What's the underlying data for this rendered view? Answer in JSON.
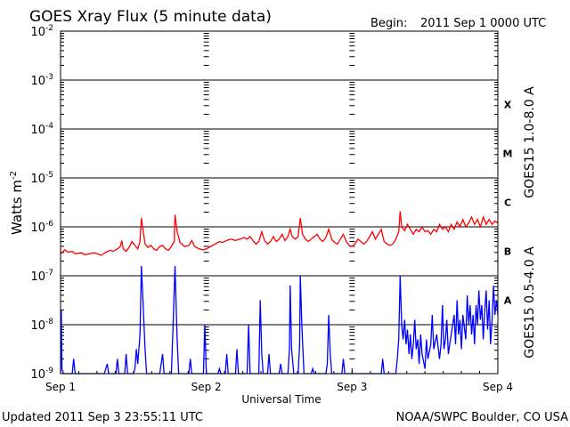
{
  "header": {
    "title": "GOES Xray Flux (5 minute data)",
    "begin_label": "Begin:",
    "begin_value": "2011 Sep 1 0000 UTC"
  },
  "footer": {
    "updated": "Updated 2011 Sep  3 23:55:11 UTC",
    "credit": "NOAA/SWPC Boulder, CO USA"
  },
  "chart_data": {
    "type": "line",
    "xlabel": "Universal Time",
    "ylabel_text": "Watts m",
    "ylabel_exp": "-2",
    "yscale": "log",
    "ylim_exponents": [
      -9,
      -2
    ],
    "ytick_labels": [
      {
        "base": "10",
        "exp": "-9"
      },
      {
        "base": "10",
        "exp": "-8"
      },
      {
        "base": "10",
        "exp": "-7"
      },
      {
        "base": "10",
        "exp": "-6"
      },
      {
        "base": "10",
        "exp": "-5"
      },
      {
        "base": "10",
        "exp": "-4"
      },
      {
        "base": "10",
        "exp": "-3"
      },
      {
        "base": "10",
        "exp": "-2"
      }
    ],
    "xticks": [
      "Sep 1",
      "Sep 2",
      "Sep 3",
      "Sep 4"
    ],
    "xlim_days": [
      0,
      3
    ],
    "flare_classes": [
      {
        "label": "A",
        "level": -7.5
      },
      {
        "label": "B",
        "level": -6.5
      },
      {
        "label": "C",
        "level": -5.5
      },
      {
        "label": "M",
        "level": -4.5
      },
      {
        "label": "X",
        "level": -3.5
      }
    ],
    "series": [
      {
        "name": "GOES15 1.0-8.0 A",
        "color": "#ff0000",
        "points": [
          [
            0.0,
            -6.55
          ],
          [
            0.03,
            -6.47
          ],
          [
            0.05,
            -6.52
          ],
          [
            0.08,
            -6.5
          ],
          [
            0.1,
            -6.55
          ],
          [
            0.14,
            -6.53
          ],
          [
            0.17,
            -6.57
          ],
          [
            0.2,
            -6.55
          ],
          [
            0.23,
            -6.53
          ],
          [
            0.26,
            -6.56
          ],
          [
            0.28,
            -6.58
          ],
          [
            0.31,
            -6.52
          ],
          [
            0.34,
            -6.48
          ],
          [
            0.36,
            -6.5
          ],
          [
            0.39,
            -6.45
          ],
          [
            0.41,
            -6.4
          ],
          [
            0.42,
            -6.28
          ],
          [
            0.43,
            -6.45
          ],
          [
            0.45,
            -6.5
          ],
          [
            0.47,
            -6.42
          ],
          [
            0.49,
            -6.3
          ],
          [
            0.51,
            -6.38
          ],
          [
            0.53,
            -6.45
          ],
          [
            0.545,
            -6.3
          ],
          [
            0.555,
            -5.82
          ],
          [
            0.565,
            -6.05
          ],
          [
            0.58,
            -6.35
          ],
          [
            0.6,
            -6.42
          ],
          [
            0.62,
            -6.38
          ],
          [
            0.64,
            -6.45
          ],
          [
            0.66,
            -6.48
          ],
          [
            0.68,
            -6.4
          ],
          [
            0.7,
            -6.38
          ],
          [
            0.72,
            -6.45
          ],
          [
            0.74,
            -6.48
          ],
          [
            0.76,
            -6.4
          ],
          [
            0.78,
            -6.3
          ],
          [
            0.785,
            -5.75
          ],
          [
            0.8,
            -6.1
          ],
          [
            0.82,
            -6.32
          ],
          [
            0.85,
            -6.4
          ],
          [
            0.88,
            -6.38
          ],
          [
            0.9,
            -6.28
          ],
          [
            0.92,
            -6.4
          ],
          [
            0.95,
            -6.45
          ],
          [
            0.98,
            -6.47
          ],
          [
            1.0,
            -6.45
          ],
          [
            1.03,
            -6.4
          ],
          [
            1.06,
            -6.35
          ],
          [
            1.09,
            -6.3
          ],
          [
            1.11,
            -6.32
          ],
          [
            1.14,
            -6.28
          ],
          [
            1.17,
            -6.25
          ],
          [
            1.2,
            -6.28
          ],
          [
            1.23,
            -6.25
          ],
          [
            1.26,
            -6.22
          ],
          [
            1.28,
            -6.25
          ],
          [
            1.3,
            -6.2
          ],
          [
            1.32,
            -6.28
          ],
          [
            1.34,
            -6.35
          ],
          [
            1.36,
            -6.3
          ],
          [
            1.38,
            -6.1
          ],
          [
            1.4,
            -6.28
          ],
          [
            1.42,
            -6.35
          ],
          [
            1.44,
            -6.3
          ],
          [
            1.46,
            -6.2
          ],
          [
            1.48,
            -6.3
          ],
          [
            1.5,
            -6.25
          ],
          [
            1.52,
            -6.15
          ],
          [
            1.54,
            -6.28
          ],
          [
            1.56,
            -6.2
          ],
          [
            1.575,
            -6.05
          ],
          [
            1.59,
            -6.2
          ],
          [
            1.61,
            -6.25
          ],
          [
            1.63,
            -6.2
          ],
          [
            1.645,
            -5.82
          ],
          [
            1.66,
            -6.15
          ],
          [
            1.68,
            -6.25
          ],
          [
            1.7,
            -6.3
          ],
          [
            1.72,
            -6.25
          ],
          [
            1.74,
            -6.2
          ],
          [
            1.76,
            -6.15
          ],
          [
            1.78,
            -6.25
          ],
          [
            1.8,
            -6.3
          ],
          [
            1.82,
            -6.22
          ],
          [
            1.84,
            -6.05
          ],
          [
            1.86,
            -6.25
          ],
          [
            1.88,
            -6.32
          ],
          [
            1.9,
            -6.35
          ],
          [
            1.92,
            -6.25
          ],
          [
            1.94,
            -6.15
          ],
          [
            1.96,
            -6.3
          ],
          [
            1.98,
            -6.38
          ],
          [
            2.0,
            -6.4
          ],
          [
            2.02,
            -6.35
          ],
          [
            2.04,
            -6.25
          ],
          [
            2.06,
            -6.3
          ],
          [
            2.08,
            -6.35
          ],
          [
            2.1,
            -6.3
          ],
          [
            2.12,
            -6.2
          ],
          [
            2.14,
            -6.1
          ],
          [
            2.16,
            -6.25
          ],
          [
            2.18,
            -6.15
          ],
          [
            2.2,
            -6.05
          ],
          [
            2.22,
            -6.3
          ],
          [
            2.24,
            -6.35
          ],
          [
            2.26,
            -6.38
          ],
          [
            2.28,
            -6.35
          ],
          [
            2.3,
            -6.25
          ],
          [
            2.32,
            -6.1
          ],
          [
            2.33,
            -5.68
          ],
          [
            2.34,
            -6.0
          ],
          [
            2.36,
            -6.08
          ],
          [
            2.38,
            -5.95
          ],
          [
            2.4,
            -6.05
          ],
          [
            2.42,
            -6.15
          ],
          [
            2.44,
            -6.05
          ],
          [
            2.46,
            -6.1
          ],
          [
            2.48,
            -6.0
          ],
          [
            2.5,
            -6.1
          ],
          [
            2.52,
            -6.08
          ],
          [
            2.54,
            -6.15
          ],
          [
            2.56,
            -6.05
          ],
          [
            2.58,
            -6.1
          ],
          [
            2.6,
            -5.95
          ],
          [
            2.62,
            -6.05
          ],
          [
            2.64,
            -6.0
          ],
          [
            2.66,
            -6.1
          ],
          [
            2.68,
            -5.95
          ],
          [
            2.7,
            -6.05
          ],
          [
            2.72,
            -5.9
          ],
          [
            2.74,
            -6.0
          ],
          [
            2.76,
            -5.85
          ],
          [
            2.78,
            -6.0
          ],
          [
            2.8,
            -5.92
          ],
          [
            2.82,
            -5.8
          ],
          [
            2.84,
            -5.95
          ],
          [
            2.86,
            -5.85
          ],
          [
            2.88,
            -6.0
          ],
          [
            2.9,
            -5.8
          ],
          [
            2.92,
            -5.95
          ],
          [
            2.94,
            -5.85
          ],
          [
            2.96,
            -5.95
          ],
          [
            2.98,
            -5.88
          ],
          [
            3.0,
            -5.92
          ]
        ]
      },
      {
        "name": "GOES15 0.5-4.0 A",
        "color": "#0000ff",
        "points": [
          [
            0.0,
            -9.0
          ],
          [
            0.005,
            -7.7
          ],
          [
            0.01,
            -8.9
          ],
          [
            0.02,
            -9.0
          ],
          [
            0.08,
            -9.0
          ],
          [
            0.09,
            -8.7
          ],
          [
            0.1,
            -9.0
          ],
          [
            0.3,
            -9.0
          ],
          [
            0.32,
            -8.8
          ],
          [
            0.33,
            -9.0
          ],
          [
            0.38,
            -9.0
          ],
          [
            0.39,
            -8.7
          ],
          [
            0.4,
            -9.0
          ],
          [
            0.44,
            -9.0
          ],
          [
            0.45,
            -8.6
          ],
          [
            0.46,
            -9.0
          ],
          [
            0.5,
            -9.0
          ],
          [
            0.51,
            -8.9
          ],
          [
            0.52,
            -8.5
          ],
          [
            0.53,
            -8.8
          ],
          [
            0.545,
            -8.2
          ],
          [
            0.555,
            -6.8
          ],
          [
            0.565,
            -7.5
          ],
          [
            0.58,
            -8.5
          ],
          [
            0.59,
            -9.0
          ],
          [
            0.68,
            -9.0
          ],
          [
            0.7,
            -8.6
          ],
          [
            0.71,
            -9.0
          ],
          [
            0.76,
            -9.0
          ],
          [
            0.77,
            -8.2
          ],
          [
            0.785,
            -6.8
          ],
          [
            0.8,
            -8.3
          ],
          [
            0.81,
            -9.0
          ],
          [
            0.88,
            -9.0
          ],
          [
            0.89,
            -8.7
          ],
          [
            0.9,
            -9.0
          ],
          [
            0.98,
            -9.0
          ],
          [
            0.99,
            -8.0
          ],
          [
            1.0,
            -9.0
          ],
          [
            1.08,
            -9.0
          ],
          [
            1.09,
            -8.9
          ],
          [
            1.1,
            -9.0
          ],
          [
            1.13,
            -9.0
          ],
          [
            1.14,
            -8.6
          ],
          [
            1.15,
            -9.0
          ],
          [
            1.2,
            -9.0
          ],
          [
            1.21,
            -8.5
          ],
          [
            1.22,
            -9.0
          ],
          [
            1.28,
            -9.0
          ],
          [
            1.29,
            -8.0
          ],
          [
            1.3,
            -9.0
          ],
          [
            1.36,
            -9.0
          ],
          [
            1.37,
            -7.5
          ],
          [
            1.38,
            -8.6
          ],
          [
            1.39,
            -9.0
          ],
          [
            1.42,
            -9.0
          ],
          [
            1.43,
            -8.6
          ],
          [
            1.44,
            -9.0
          ],
          [
            1.5,
            -9.0
          ],
          [
            1.51,
            -8.8
          ],
          [
            1.52,
            -9.0
          ],
          [
            1.56,
            -9.0
          ],
          [
            1.57,
            -8.5
          ],
          [
            1.575,
            -7.2
          ],
          [
            1.585,
            -8.5
          ],
          [
            1.6,
            -9.0
          ],
          [
            1.63,
            -9.0
          ],
          [
            1.64,
            -8.4
          ],
          [
            1.645,
            -7.0
          ],
          [
            1.655,
            -8.0
          ],
          [
            1.67,
            -9.0
          ],
          [
            1.72,
            -9.0
          ],
          [
            1.73,
            -8.9
          ],
          [
            1.74,
            -9.0
          ],
          [
            1.82,
            -9.0
          ],
          [
            1.83,
            -8.8
          ],
          [
            1.84,
            -7.8
          ],
          [
            1.85,
            -8.6
          ],
          [
            1.86,
            -9.0
          ],
          [
            1.93,
            -9.0
          ],
          [
            1.94,
            -8.7
          ],
          [
            1.95,
            -9.0
          ],
          [
            2.2,
            -9.0
          ],
          [
            2.21,
            -8.7
          ],
          [
            2.22,
            -9.0
          ],
          [
            2.3,
            -9.0
          ],
          [
            2.31,
            -8.7
          ],
          [
            2.32,
            -8.3
          ],
          [
            2.33,
            -7.0
          ],
          [
            2.34,
            -8.0
          ],
          [
            2.35,
            -8.3
          ],
          [
            2.36,
            -7.9
          ],
          [
            2.37,
            -8.4
          ],
          [
            2.38,
            -8.1
          ],
          [
            2.39,
            -8.6
          ],
          [
            2.4,
            -8.2
          ],
          [
            2.41,
            -8.7
          ],
          [
            2.42,
            -8.4
          ],
          [
            2.43,
            -7.9
          ],
          [
            2.44,
            -8.5
          ],
          [
            2.45,
            -8.3
          ],
          [
            2.46,
            -8.8
          ],
          [
            2.47,
            -8.2
          ],
          [
            2.48,
            -8.6
          ],
          [
            2.5,
            -8.9
          ],
          [
            2.51,
            -8.3
          ],
          [
            2.52,
            -8.7
          ],
          [
            2.54,
            -8.4
          ],
          [
            2.55,
            -7.8
          ],
          [
            2.56,
            -8.5
          ],
          [
            2.58,
            -8.2
          ],
          [
            2.6,
            -8.7
          ],
          [
            2.61,
            -8.4
          ],
          [
            2.62,
            -7.6
          ],
          [
            2.63,
            -8.5
          ],
          [
            2.64,
            -8.3
          ],
          [
            2.65,
            -7.9
          ],
          [
            2.66,
            -8.6
          ],
          [
            2.68,
            -8.2
          ],
          [
            2.7,
            -7.8
          ],
          [
            2.71,
            -8.4
          ],
          [
            2.72,
            -7.5
          ],
          [
            2.73,
            -8.2
          ],
          [
            2.74,
            -7.9
          ],
          [
            2.75,
            -8.5
          ],
          [
            2.76,
            -7.8
          ],
          [
            2.78,
            -8.3
          ],
          [
            2.79,
            -7.4
          ],
          [
            2.8,
            -8.0
          ],
          [
            2.81,
            -7.6
          ],
          [
            2.82,
            -8.2
          ],
          [
            2.83,
            -7.8
          ],
          [
            2.84,
            -8.4
          ],
          [
            2.85,
            -7.6
          ],
          [
            2.86,
            -8.0
          ],
          [
            2.87,
            -7.3
          ],
          [
            2.88,
            -7.9
          ],
          [
            2.89,
            -7.6
          ],
          [
            2.9,
            -8.3
          ],
          [
            2.91,
            -7.7
          ],
          [
            2.92,
            -7.3
          ],
          [
            2.93,
            -8.1
          ],
          [
            2.94,
            -7.5
          ],
          [
            2.95,
            -8.4
          ],
          [
            2.96,
            -7.9
          ],
          [
            2.97,
            -7.2
          ],
          [
            2.98,
            -7.8
          ],
          [
            2.99,
            -7.5
          ],
          [
            3.0,
            -7.8
          ]
        ]
      }
    ]
  }
}
